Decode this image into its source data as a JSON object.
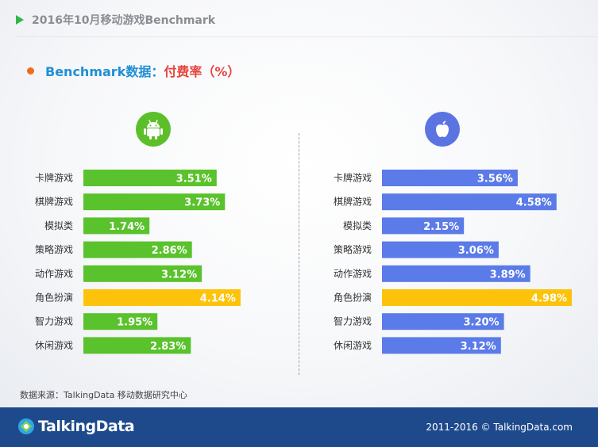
{
  "header": {
    "title": "2016年10月移动游戏Benchmark"
  },
  "section": {
    "title_a": "Benchmark数据：",
    "title_b": "付费率（%）"
  },
  "colors": {
    "android": "#5ac22c",
    "ios": "#5b7be8",
    "highlight": "#fdc20a"
  },
  "icons": {
    "android": "android-icon",
    "ios": "apple-icon"
  },
  "chart_data": [
    {
      "type": "bar",
      "orientation": "horizontal",
      "categories": [
        "卡牌游戏",
        "棋牌游戏",
        "模拟类",
        "策略游戏",
        "动作游戏",
        "角色扮演",
        "智力游戏",
        "休闲游戏"
      ],
      "values": [
        3.51,
        3.73,
        1.74,
        2.86,
        3.12,
        4.14,
        1.95,
        2.83
      ],
      "value_labels": [
        "3.51%",
        "3.73%",
        "1.74%",
        "2.86%",
        "3.12%",
        "4.14%",
        "1.95%",
        "2.83%"
      ],
      "highlight_category": "角色扮演",
      "xlim": [
        0,
        5
      ]
    },
    {
      "type": "bar",
      "orientation": "horizontal",
      "categories": [
        "卡牌游戏",
        "棋牌游戏",
        "模拟类",
        "策略游戏",
        "动作游戏",
        "角色扮演",
        "智力游戏",
        "休闲游戏"
      ],
      "values": [
        3.56,
        4.58,
        2.15,
        3.06,
        3.89,
        4.98,
        3.2,
        3.12
      ],
      "value_labels": [
        "3.56%",
        "4.58%",
        "2.15%",
        "3.06%",
        "3.89%",
        "4.98%",
        "3.20%",
        "3.12%"
      ],
      "highlight_category": "角色扮演",
      "xlim": [
        0,
        5
      ]
    }
  ],
  "source": "数据来源：TalkingData 移动数据研究中心",
  "footer": {
    "brand": "TalkingData",
    "copyright": "2011-2016 © TalkingData.com"
  }
}
